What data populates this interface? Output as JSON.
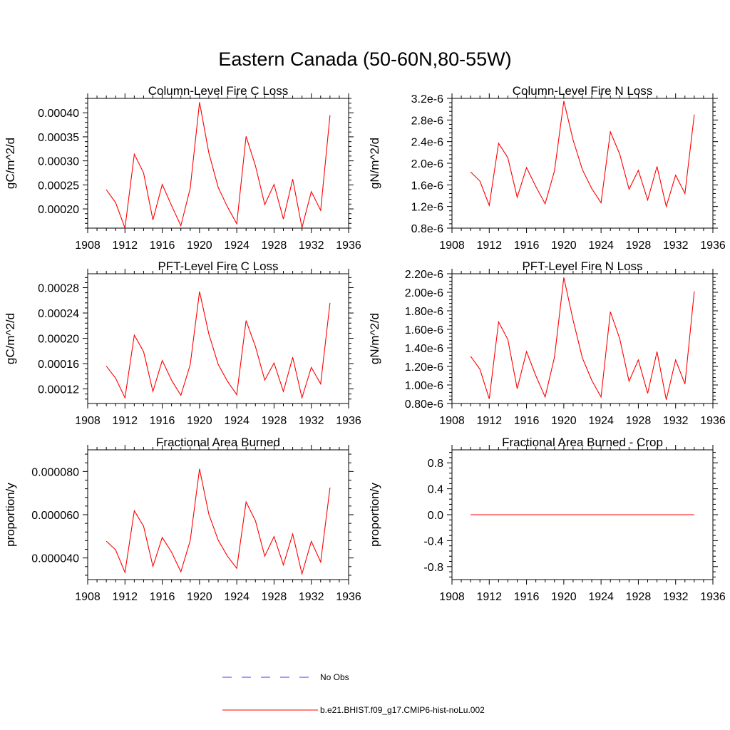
{
  "figure_title": "Eastern Canada (50-60N,80-55W)",
  "legend": {
    "obs_label": "No Obs",
    "model_label": "b.e21.BHIST.f09_g17.CMIP6-hist-noLu.002",
    "obs_color": "#3b3bff",
    "model_color": "#ff0000"
  },
  "chart_data": [
    {
      "type": "line",
      "title": "Column-Level Fire C Loss",
      "ylabel": "gC/m^2/d",
      "xlim": [
        1908,
        1936
      ],
      "ylim": [
        0.00016,
        0.00043
      ],
      "xticks": [
        1908,
        1912,
        1916,
        1920,
        1924,
        1928,
        1932,
        1936
      ],
      "xtick_labels": [
        "1908",
        "1912",
        "1916",
        "1920",
        "1924",
        "1928",
        "1932",
        "1936"
      ],
      "yticks": [
        0.0002,
        0.00025,
        0.0003,
        0.00035,
        0.0004
      ],
      "ytick_labels": [
        "0.00020",
        "0.00025",
        "0.00030",
        "0.00035",
        "0.00040"
      ],
      "series": [
        {
          "name": "b.e21.BHIST.f09_g17.CMIP6-hist-noLu.002",
          "color": "#ff0000",
          "x": [
            1910,
            1911,
            1912,
            1913,
            1914,
            1915,
            1916,
            1917,
            1918,
            1919,
            1920,
            1921,
            1922,
            1923,
            1924,
            1925,
            1926,
            1927,
            1928,
            1929,
            1930,
            1931,
            1932,
            1933,
            1934
          ],
          "y": [
            0.00024,
            0.000213,
            0.00016,
            0.000314,
            0.000275,
            0.000177,
            0.000251,
            0.000207,
            0.000165,
            0.000243,
            0.000422,
            0.000317,
            0.000245,
            0.000204,
            0.000169,
            0.000351,
            0.00029,
            0.000209,
            0.000251,
            0.000179,
            0.000262,
            0.000161,
            0.000236,
            0.000197,
            0.000395
          ]
        }
      ]
    },
    {
      "type": "line",
      "title": "Column-Level Fire N Loss",
      "ylabel": "gN/m^2/d",
      "xlim": [
        1908,
        1936
      ],
      "ylim": [
        8e-07,
        3.2e-06
      ],
      "xticks": [
        1908,
        1912,
        1916,
        1920,
        1924,
        1928,
        1932,
        1936
      ],
      "xtick_labels": [
        "1908",
        "1912",
        "1916",
        "1920",
        "1924",
        "1928",
        "1932",
        "1936"
      ],
      "yticks": [
        8e-07,
        1.2e-06,
        1.6e-06,
        2e-06,
        2.4e-06,
        2.8e-06,
        3.2e-06
      ],
      "ytick_labels": [
        "0.8e-6",
        "1.2e-6",
        "1.6e-6",
        "2.0e-6",
        "2.4e-6",
        "2.8e-6",
        "3.2e-6"
      ],
      "series": [
        {
          "name": "b.e21.BHIST.f09_g17.CMIP6-hist-noLu.002",
          "color": "#ff0000",
          "x": [
            1910,
            1911,
            1912,
            1913,
            1914,
            1915,
            1916,
            1917,
            1918,
            1919,
            1920,
            1921,
            1922,
            1923,
            1924,
            1925,
            1926,
            1927,
            1928,
            1929,
            1930,
            1931,
            1932,
            1933,
            1934
          ],
          "y": [
            1.84e-06,
            1.67e-06,
            1.22e-06,
            2.37e-06,
            2.1e-06,
            1.37e-06,
            1.92e-06,
            1.57e-06,
            1.25e-06,
            1.86e-06,
            3.15e-06,
            2.43e-06,
            1.88e-06,
            1.53e-06,
            1.27e-06,
            2.58e-06,
            2.17e-06,
            1.52e-06,
            1.87e-06,
            1.32e-06,
            1.94e-06,
            1.2e-06,
            1.78e-06,
            1.44e-06,
            2.9e-06
          ]
        }
      ]
    },
    {
      "type": "line",
      "title": "PFT-Level Fire C Loss",
      "ylabel": "gC/m^2/d",
      "xlim": [
        1908,
        1936
      ],
      "ylim": [
        9.7e-05,
        0.000302
      ],
      "xticks": [
        1908,
        1912,
        1916,
        1920,
        1924,
        1928,
        1932,
        1936
      ],
      "xtick_labels": [
        "1908",
        "1912",
        "1916",
        "1920",
        "1924",
        "1928",
        "1932",
        "1936"
      ],
      "yticks": [
        0.00012,
        0.00016,
        0.0002,
        0.00024,
        0.00028
      ],
      "ytick_labels": [
        "0.00012",
        "0.00016",
        "0.00020",
        "0.00024",
        "0.00028"
      ],
      "series": [
        {
          "name": "b.e21.BHIST.f09_g17.CMIP6-hist-noLu.002",
          "color": "#ff0000",
          "x": [
            1910,
            1911,
            1912,
            1913,
            1914,
            1915,
            1916,
            1917,
            1918,
            1919,
            1920,
            1921,
            1922,
            1923,
            1924,
            1925,
            1926,
            1927,
            1928,
            1929,
            1930,
            1931,
            1932,
            1933,
            1934
          ],
          "y": [
            0.000156,
            0.000137,
            0.000106,
            0.000205,
            0.000179,
            0.000116,
            0.000165,
            0.000134,
            0.00011,
            0.000158,
            0.000274,
            0.000207,
            0.000159,
            0.000132,
            0.000111,
            0.000228,
            0.000187,
            0.000134,
            0.000161,
            0.000116,
            0.00017,
            0.000106,
            0.000154,
            0.000128,
            0.000256
          ]
        }
      ]
    },
    {
      "type": "line",
      "title": "PFT-Level Fire N Loss",
      "ylabel": "gN/m^2/d",
      "xlim": [
        1908,
        1936
      ],
      "ylim": [
        8e-07,
        2.2e-06
      ],
      "xticks": [
        1908,
        1912,
        1916,
        1920,
        1924,
        1928,
        1932,
        1936
      ],
      "xtick_labels": [
        "1908",
        "1912",
        "1916",
        "1920",
        "1924",
        "1928",
        "1932",
        "1936"
      ],
      "yticks": [
        8e-07,
        1e-06,
        1.2e-06,
        1.4e-06,
        1.6e-06,
        1.8e-06,
        2e-06,
        2.2e-06
      ],
      "ytick_labels": [
        "0.80e-6",
        "1.00e-6",
        "1.20e-6",
        "1.40e-6",
        "1.60e-6",
        "1.80e-6",
        "2.00e-6",
        "2.20e-6"
      ],
      "series": [
        {
          "name": "b.e21.BHIST.f09_g17.CMIP6-hist-noLu.002",
          "color": "#ff0000",
          "x": [
            1910,
            1911,
            1912,
            1913,
            1914,
            1915,
            1916,
            1917,
            1918,
            1919,
            1920,
            1921,
            1922,
            1923,
            1924,
            1925,
            1926,
            1927,
            1928,
            1929,
            1930,
            1931,
            1932,
            1933,
            1934
          ],
          "y": [
            1.31e-06,
            1.17e-06,
            8.5e-07,
            1.68e-06,
            1.49e-06,
            9.6e-07,
            1.36e-06,
            1.1e-06,
            8.7e-07,
            1.3e-06,
            2.16e-06,
            1.7e-06,
            1.29e-06,
            1.05e-06,
            8.7e-07,
            1.79e-06,
            1.5e-06,
            1.04e-06,
            1.27e-06,
            9.1e-07,
            1.36e-06,
            8.4e-07,
            1.27e-06,
            1.01e-06,
            2.01e-06
          ]
        }
      ]
    },
    {
      "type": "line",
      "title": "Fractional Area Burned",
      "ylabel": "proportion/y",
      "xlim": [
        1908,
        1936
      ],
      "ylim": [
        3e-05,
        9e-05
      ],
      "xticks": [
        1908,
        1912,
        1916,
        1920,
        1924,
        1928,
        1932,
        1936
      ],
      "xtick_labels": [
        "1908",
        "1912",
        "1916",
        "1920",
        "1924",
        "1928",
        "1932",
        "1936"
      ],
      "yticks": [
        4e-05,
        6e-05,
        8e-05
      ],
      "ytick_labels": [
        "0.000040",
        "0.000060",
        "0.000080"
      ],
      "series": [
        {
          "name": "b.e21.BHIST.f09_g17.CMIP6-hist-noLu.002",
          "color": "#ff0000",
          "x": [
            1910,
            1911,
            1912,
            1913,
            1914,
            1915,
            1916,
            1917,
            1918,
            1919,
            1920,
            1921,
            1922,
            1923,
            1924,
            1925,
            1926,
            1927,
            1928,
            1929,
            1930,
            1931,
            1932,
            1933,
            1934
          ],
          "y": [
            4.78e-05,
            4.37e-05,
            3.33e-05,
            6.18e-05,
            5.47e-05,
            3.61e-05,
            4.95e-05,
            4.27e-05,
            3.36e-05,
            4.8e-05,
            8.12e-05,
            6.03e-05,
            4.83e-05,
            4.08e-05,
            3.52e-05,
            6.59e-05,
            5.72e-05,
            4.08e-05,
            4.99e-05,
            3.68e-05,
            5.11e-05,
            3.26e-05,
            4.77e-05,
            3.81e-05,
            7.25e-05
          ]
        }
      ]
    },
    {
      "type": "line",
      "title": "Fractional Area Burned - Crop",
      "ylabel": "proportion/y",
      "xlim": [
        1908,
        1936
      ],
      "ylim": [
        -1.0,
        1.0
      ],
      "xticks": [
        1908,
        1912,
        1916,
        1920,
        1924,
        1928,
        1932,
        1936
      ],
      "xtick_labels": [
        "1908",
        "1912",
        "1916",
        "1920",
        "1924",
        "1928",
        "1932",
        "1936"
      ],
      "yticks": [
        -0.8,
        -0.4,
        0.0,
        0.4,
        0.8
      ],
      "ytick_labels": [
        "-0.8",
        "-0.4",
        "0.0",
        "0.4",
        "0.8"
      ],
      "series": [
        {
          "name": "b.e21.BHIST.f09_g17.CMIP6-hist-noLu.002",
          "color": "#ff0000",
          "x": [
            1910,
            1911,
            1912,
            1913,
            1914,
            1915,
            1916,
            1917,
            1918,
            1919,
            1920,
            1921,
            1922,
            1923,
            1924,
            1925,
            1926,
            1927,
            1928,
            1929,
            1930,
            1931,
            1932,
            1933,
            1934
          ],
          "y": [
            0,
            0,
            0,
            0,
            0,
            0,
            0,
            0,
            0,
            0,
            0,
            0,
            0,
            0,
            0,
            0,
            0,
            0,
            0,
            0,
            0,
            0,
            0,
            0,
            0
          ]
        }
      ]
    }
  ]
}
